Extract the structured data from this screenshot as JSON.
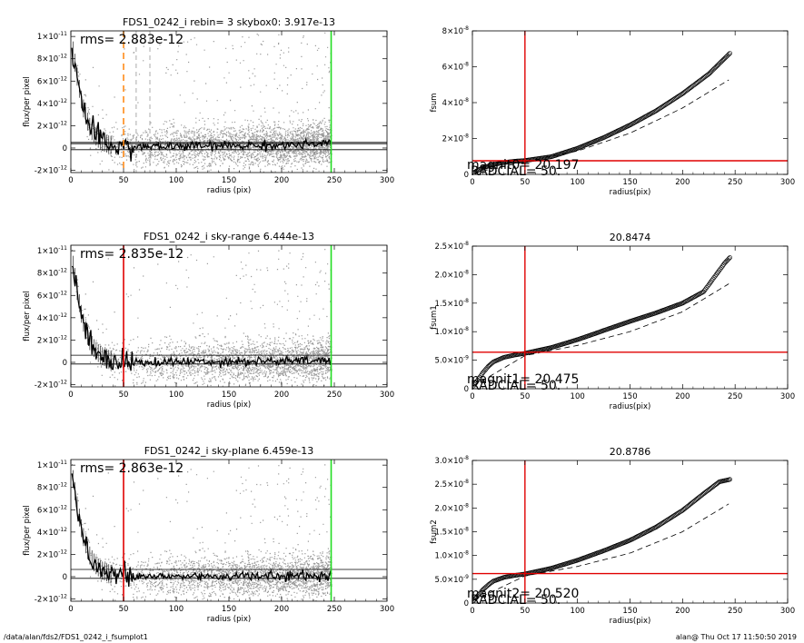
{
  "footer": {
    "path": "/data/alan/fds2/FDS1_0242_i_fsumplot1",
    "user_time": "alan@  Thu Oct 17 11:50:50 2019"
  },
  "colors": {
    "orange": "#ff8c1a",
    "red": "#e00000",
    "green": "#22dd22",
    "scatter": "#9a9a9a",
    "ink": "#000000"
  },
  "chart_data": [
    {
      "id": "profile-1",
      "type": "scatter",
      "title": "FDS1_0242_i rebin= 3    skybox0:  3.917e-13",
      "xlabel": "radius (pix)",
      "ylabel": "flux/per pixel",
      "xlim": [
        0,
        300
      ],
      "ylim": [
        -2.2e-12,
        1.05e-11
      ],
      "xticks": [
        "0",
        "50",
        "100",
        "150",
        "200",
        "250",
        "300"
      ],
      "yticks": [
        {
          "v": -2e-12,
          "m": "-2",
          "e": "-12"
        },
        {
          "v": 0,
          "m": "0",
          "e": ""
        },
        {
          "v": 2e-12,
          "m": "2",
          "e": "-12"
        },
        {
          "v": 4e-12,
          "m": "4",
          "e": "-12"
        },
        {
          "v": 6e-12,
          "m": "6",
          "e": "-12"
        },
        {
          "v": 8e-12,
          "m": "8",
          "e": "-12"
        },
        {
          "v": 1e-11,
          "m": "1",
          "e": "-11"
        }
      ],
      "annotation": "rms= 2.883e-12",
      "vlines": [
        {
          "x": 50,
          "color": "orange",
          "style": "dashed"
        },
        {
          "x": 62,
          "color": "grey",
          "style": "dashed"
        },
        {
          "x": 75,
          "color": "grey",
          "style": "dashed"
        },
        {
          "x": 247,
          "color": "green",
          "style": "solid"
        }
      ],
      "hlines": [
        3.9e-13,
        -1.5e-13,
        5e-13
      ],
      "profile_r": [
        1,
        3,
        5,
        7,
        9,
        11,
        13,
        15,
        18,
        21,
        25,
        30,
        35,
        40,
        50,
        60,
        80,
        100,
        150,
        200,
        247
      ],
      "profile_f": [
        9.2e-12,
        8.3e-12,
        7e-12,
        5.8e-12,
        4.8e-12,
        3.9e-12,
        3.2e-12,
        2.6e-12,
        1.9e-12,
        1.4e-12,
        9e-13,
        5.5e-13,
        3.5e-13,
        2.5e-13,
        1.5e-13,
        1e-13,
        1e-13,
        1.5e-13,
        2e-13,
        2.5e-13,
        3.5e-13
      ]
    },
    {
      "id": "curve-1",
      "type": "line",
      "title": "",
      "xlabel": "radius(pix)",
      "ylabel": "fsum",
      "xlim": [
        0,
        300
      ],
      "ylim": [
        0,
        8e-08
      ],
      "xticks": [
        "0",
        "50",
        "100",
        "150",
        "200",
        "250",
        "300"
      ],
      "yticks": [
        {
          "v": 0,
          "m": "0",
          "e": ""
        },
        {
          "v": 2e-08,
          "m": "2",
          "e": "-8"
        },
        {
          "v": 4e-08,
          "m": "4",
          "e": "-8"
        },
        {
          "v": 6e-08,
          "m": "6",
          "e": "-8"
        },
        {
          "v": 8e-08,
          "m": "8",
          "e": "-8"
        }
      ],
      "vline": 50,
      "hline": 7.6e-09,
      "labels": [
        "magnit0= 20.197",
        "RADCIAL=   50."
      ],
      "circles_r": [
        1,
        5,
        10,
        20,
        30,
        40,
        50,
        75,
        100,
        125,
        150,
        175,
        200,
        225,
        245
      ],
      "circles_y": [
        8e-10,
        2.2e-09,
        3.6e-09,
        5.5e-09,
        6.6e-09,
        7.3e-09,
        7.7e-09,
        9.8e-09,
        1.45e-08,
        2.05e-08,
        2.75e-08,
        3.55e-08,
        4.5e-08,
        5.6e-08,
        6.75e-08
      ],
      "dashed_r": [
        1,
        50,
        100,
        150,
        200,
        245
      ],
      "dashed_y": [
        8e-10,
        7e-09,
        1.3e-08,
        2.3e-08,
        3.7e-08,
        5.3e-08
      ]
    },
    {
      "id": "profile-2",
      "type": "scatter",
      "title": "FDS1_0242_i sky-range  6.444e-13",
      "xlabel": "radius (pix)",
      "ylabel": "flux/per pixel",
      "xlim": [
        0,
        300
      ],
      "ylim": [
        -2.2e-12,
        1.05e-11
      ],
      "xticks": [
        "0",
        "50",
        "100",
        "150",
        "200",
        "250",
        "300"
      ],
      "yticks": [
        {
          "v": -2e-12,
          "m": "-2",
          "e": "-12"
        },
        {
          "v": 0,
          "m": "0",
          "e": ""
        },
        {
          "v": 2e-12,
          "m": "2",
          "e": "-12"
        },
        {
          "v": 4e-12,
          "m": "4",
          "e": "-12"
        },
        {
          "v": 6e-12,
          "m": "6",
          "e": "-12"
        },
        {
          "v": 8e-12,
          "m": "8",
          "e": "-12"
        },
        {
          "v": 1e-11,
          "m": "1",
          "e": "-11"
        }
      ],
      "annotation": "rms= 2.835e-12",
      "vlines": [
        {
          "x": 50,
          "color": "red",
          "style": "solid"
        },
        {
          "x": 247,
          "color": "green",
          "style": "solid"
        }
      ],
      "hlines": [
        6.4e-13,
        -1.5e-13
      ],
      "profile_r": [
        1,
        3,
        5,
        7,
        9,
        11,
        13,
        15,
        18,
        21,
        25,
        30,
        35,
        40,
        50,
        60,
        80,
        100,
        150,
        200,
        247
      ],
      "profile_f": [
        9.2e-12,
        8.3e-12,
        7e-12,
        5.8e-12,
        4.8e-12,
        3.9e-12,
        3.2e-12,
        2.6e-12,
        1.9e-12,
        1.4e-12,
        9e-13,
        5.5e-13,
        3.5e-13,
        2e-13,
        5e-14,
        0.0,
        0.0,
        5e-14,
        1e-13,
        1e-13,
        1.5e-13
      ]
    },
    {
      "id": "curve-2",
      "type": "line",
      "title": "20.8474",
      "xlabel": "radius(pix)",
      "ylabel": "fsum1",
      "xlim": [
        0,
        300
      ],
      "ylim": [
        0,
        2.5e-08
      ],
      "xticks": [
        "0",
        "50",
        "100",
        "150",
        "200",
        "250",
        "300"
      ],
      "yticks": [
        {
          "v": 0,
          "m": "0",
          "e": ""
        },
        {
          "v": 5e-09,
          "m": "5.0",
          "e": "-9"
        },
        {
          "v": 1e-08,
          "m": "1.0",
          "e": "-8"
        },
        {
          "v": 1.5e-08,
          "m": "1.5",
          "e": "-8"
        },
        {
          "v": 2e-08,
          "m": "2.0",
          "e": "-8"
        },
        {
          "v": 2.5e-08,
          "m": "2.5",
          "e": "-8"
        }
      ],
      "vline": 50,
      "hline": 6.4e-09,
      "labels": [
        "magnit1= 20.475",
        "RADCIAL=   50."
      ],
      "circles_r": [
        1,
        5,
        10,
        15,
        20,
        30,
        40,
        50,
        75,
        100,
        125,
        150,
        175,
        200,
        220,
        230,
        240,
        245
      ],
      "circles_y": [
        5e-10,
        1.5e-09,
        2.8e-09,
        3.9e-09,
        4.7e-09,
        5.5e-09,
        5.9e-09,
        6.2e-09,
        7.2e-09,
        8.6e-09,
        1.02e-08,
        1.18e-08,
        1.33e-08,
        1.5e-08,
        1.7e-08,
        1.95e-08,
        2.2e-08,
        2.3e-08
      ],
      "dashed_r": [
        1,
        50,
        100,
        150,
        200,
        245
      ],
      "dashed_y": [
        5e-10,
        5.8e-09,
        7.6e-09,
        1e-08,
        1.35e-08,
        1.85e-08
      ]
    },
    {
      "id": "profile-3",
      "type": "scatter",
      "title": "FDS1_0242_i sky-plane  6.459e-13",
      "xlabel": "radius (pix)",
      "ylabel": "flux/per pixel",
      "xlim": [
        0,
        300
      ],
      "ylim": [
        -2.2e-12,
        1.05e-11
      ],
      "xticks": [
        "0",
        "50",
        "100",
        "150",
        "200",
        "250",
        "300"
      ],
      "yticks": [
        {
          "v": -2e-12,
          "m": "-2",
          "e": "-12"
        },
        {
          "v": 0,
          "m": "0",
          "e": ""
        },
        {
          "v": 2e-12,
          "m": "2",
          "e": "-12"
        },
        {
          "v": 4e-12,
          "m": "4",
          "e": "-12"
        },
        {
          "v": 6e-12,
          "m": "6",
          "e": "-12"
        },
        {
          "v": 8e-12,
          "m": "8",
          "e": "-12"
        },
        {
          "v": 1e-11,
          "m": "1",
          "e": "-11"
        }
      ],
      "annotation": "rms= 2.863e-12",
      "vlines": [
        {
          "x": 50,
          "color": "red",
          "style": "solid"
        },
        {
          "x": 247,
          "color": "green",
          "style": "solid"
        }
      ],
      "hlines": [
        6.5e-13,
        -1.5e-13
      ],
      "profile_r": [
        1,
        3,
        5,
        7,
        9,
        11,
        13,
        15,
        18,
        21,
        25,
        30,
        35,
        40,
        50,
        60,
        80,
        100,
        150,
        200,
        247
      ],
      "profile_f": [
        9.2e-12,
        8.3e-12,
        7e-12,
        5.8e-12,
        4.8e-12,
        3.9e-12,
        3.2e-12,
        2.6e-12,
        1.9e-12,
        1.4e-12,
        9e-13,
        5.5e-13,
        3.5e-13,
        2e-13,
        5e-14,
        0.0,
        0.0,
        5e-14,
        5e-14,
        5e-14,
        5e-14
      ]
    },
    {
      "id": "curve-3",
      "type": "line",
      "title": "20.8786",
      "xlabel": "radius(pix)",
      "ylabel": "fsum2",
      "xlim": [
        0,
        300
      ],
      "ylim": [
        0,
        3e-08
      ],
      "xticks": [
        "0",
        "50",
        "100",
        "150",
        "200",
        "250",
        "300"
      ],
      "yticks": [
        {
          "v": 0,
          "m": "0",
          "e": ""
        },
        {
          "v": 5e-09,
          "m": "5.0",
          "e": "-9"
        },
        {
          "v": 1e-08,
          "m": "1.0",
          "e": "-8"
        },
        {
          "v": 1.5e-08,
          "m": "1.5",
          "e": "-8"
        },
        {
          "v": 2e-08,
          "m": "2.0",
          "e": "-8"
        },
        {
          "v": 2.5e-08,
          "m": "2.5",
          "e": "-8"
        },
        {
          "v": 3e-08,
          "m": "3.0",
          "e": "-8"
        }
      ],
      "vline": 50,
      "hline": 6.2e-09,
      "labels": [
        "magnit2= 20.520",
        "RADCIAL=   50."
      ],
      "circles_r": [
        1,
        5,
        10,
        15,
        20,
        30,
        40,
        50,
        75,
        100,
        125,
        150,
        175,
        200,
        220,
        235,
        245
      ],
      "circles_y": [
        5e-10,
        1.5e-09,
        2.8e-09,
        3.8e-09,
        4.6e-09,
        5.4e-09,
        5.8e-09,
        6.1e-09,
        7.3e-09,
        9e-09,
        1.1e-08,
        1.32e-08,
        1.6e-08,
        1.95e-08,
        2.3e-08,
        2.55e-08,
        2.6e-08
      ],
      "dashed_r": [
        1,
        50,
        100,
        150,
        200,
        245
      ],
      "dashed_y": [
        5e-10,
        5.7e-09,
        7.7e-09,
        1.05e-08,
        1.5e-08,
        2.1e-08
      ]
    }
  ]
}
